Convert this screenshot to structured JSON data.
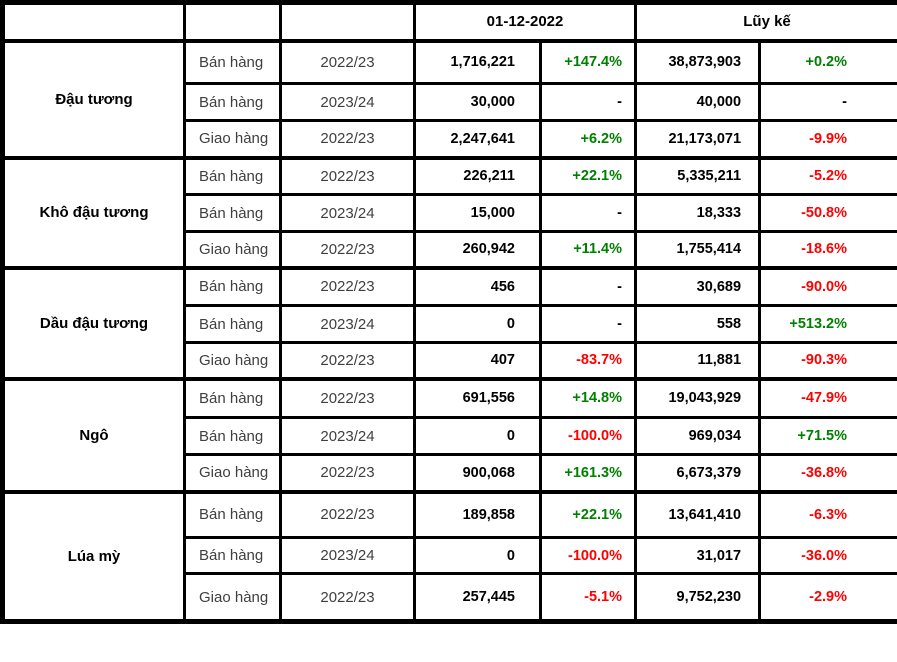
{
  "colors": {
    "positive": "#008000",
    "negative": "#ff0000",
    "neutral": "#000000",
    "muted_text": "#3f3f3f",
    "border": "#000000",
    "background": "#ffffff"
  },
  "chart_data": {
    "type": "table",
    "header_groups": [
      {
        "label": "01-12-2022",
        "span": 2
      },
      {
        "label": "Lũy kế",
        "span": 2
      }
    ],
    "columns": [
      "commodity",
      "activity",
      "season",
      "value",
      "change_pct",
      "cumulative_value",
      "cumulative_change_pct"
    ],
    "sections": [
      {
        "commodity": "Đậu tương",
        "rows": [
          {
            "activity": "Bán hàng",
            "season": "2022/23",
            "value": "1,716,221",
            "change": "+147.4%",
            "change_color": "positive",
            "cumulative": "38,873,903",
            "cumulative_change": "+0.2%",
            "cumulative_change_color": "positive"
          },
          {
            "activity": "Bán hàng",
            "season": "2023/24",
            "value": "30,000",
            "change": "-",
            "change_color": "neutral",
            "cumulative": "40,000",
            "cumulative_change": "-",
            "cumulative_change_color": "neutral"
          },
          {
            "activity": "Giao hàng",
            "season": "2022/23",
            "value": "2,247,641",
            "change": "+6.2%",
            "change_color": "positive",
            "cumulative": "21,173,071",
            "cumulative_change": "-9.9%",
            "cumulative_change_color": "negative"
          }
        ]
      },
      {
        "commodity": "Khô đậu tương",
        "rows": [
          {
            "activity": "Bán hàng",
            "season": "2022/23",
            "value": "226,211",
            "change": "+22.1%",
            "change_color": "positive",
            "cumulative": "5,335,211",
            "cumulative_change": "-5.2%",
            "cumulative_change_color": "negative"
          },
          {
            "activity": "Bán hàng",
            "season": "2023/24",
            "value": "15,000",
            "change": "-",
            "change_color": "neutral",
            "cumulative": "18,333",
            "cumulative_change": "-50.8%",
            "cumulative_change_color": "negative"
          },
          {
            "activity": "Giao hàng",
            "season": "2022/23",
            "value": "260,942",
            "change": "+11.4%",
            "change_color": "positive",
            "cumulative": "1,755,414",
            "cumulative_change": "-18.6%",
            "cumulative_change_color": "negative"
          }
        ]
      },
      {
        "commodity": "Dầu đậu tương",
        "rows": [
          {
            "activity": "Bán hàng",
            "season": "2022/23",
            "value": "456",
            "change": "-",
            "change_color": "neutral",
            "cumulative": "30,689",
            "cumulative_change": "-90.0%",
            "cumulative_change_color": "negative"
          },
          {
            "activity": "Bán hàng",
            "season": "2023/24",
            "value": "0",
            "change": "-",
            "change_color": "neutral",
            "cumulative": "558",
            "cumulative_change": "+513.2%",
            "cumulative_change_color": "positive"
          },
          {
            "activity": "Giao hàng",
            "season": "2022/23",
            "value": "407",
            "change": "-83.7%",
            "change_color": "negative",
            "cumulative": "11,881",
            "cumulative_change": "-90.3%",
            "cumulative_change_color": "negative"
          }
        ]
      },
      {
        "commodity": "Ngô",
        "rows": [
          {
            "activity": "Bán hàng",
            "season": "2022/23",
            "value": "691,556",
            "change": "+14.8%",
            "change_color": "positive",
            "cumulative": "19,043,929",
            "cumulative_change": "-47.9%",
            "cumulative_change_color": "negative"
          },
          {
            "activity": "Bán hàng",
            "season": "2023/24",
            "value": "0",
            "change": "-100.0%",
            "change_color": "negative",
            "cumulative": "969,034",
            "cumulative_change": "+71.5%",
            "cumulative_change_color": "positive"
          },
          {
            "activity": "Giao hàng",
            "season": "2022/23",
            "value": "900,068",
            "change": "+161.3%",
            "change_color": "positive",
            "cumulative": "6,673,379",
            "cumulative_change": "-36.8%",
            "cumulative_change_color": "negative"
          }
        ]
      },
      {
        "commodity": "Lúa mỳ",
        "rows": [
          {
            "activity": "Bán hàng",
            "season": "2022/23",
            "value": "189,858",
            "change": "+22.1%",
            "change_color": "positive",
            "cumulative": "13,641,410",
            "cumulative_change": "-6.3%",
            "cumulative_change_color": "negative"
          },
          {
            "activity": "Bán hàng",
            "season": "2023/24",
            "value": "0",
            "change": "-100.0%",
            "change_color": "negative",
            "cumulative": "31,017",
            "cumulative_change": "-36.0%",
            "cumulative_change_color": "negative"
          },
          {
            "activity": "Giao hàng",
            "season": "2022/23",
            "value": "257,445",
            "change": "-5.1%",
            "change_color": "negative",
            "cumulative": "9,752,230",
            "cumulative_change": "-2.9%",
            "cumulative_change_color": "negative"
          }
        ]
      }
    ]
  }
}
